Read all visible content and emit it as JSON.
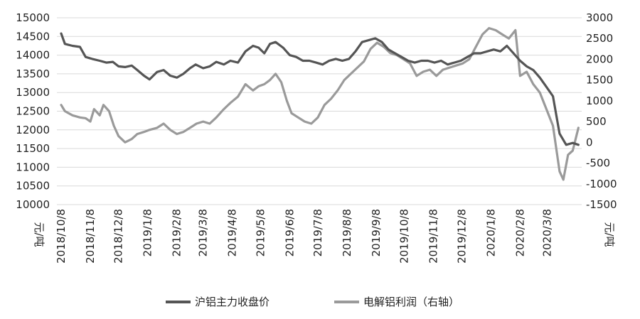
{
  "chart_data": {
    "type": "line",
    "grid": true,
    "legend_position": "bottom",
    "left_axis": {
      "unit": "元/吨",
      "min": 10000,
      "max": 15000,
      "step": 500
    },
    "right_axis": {
      "unit": "元/吨",
      "min": -1500,
      "max": 3000,
      "step": 500
    },
    "x_tick_labels": [
      "2018/10/8",
      "2018/11/8",
      "2018/12/8",
      "2019/1/8",
      "2019/2/8",
      "2019/3/8",
      "2019/4/8",
      "2019/5/8",
      "2019/6/8",
      "2019/7/8",
      "2019/8/8",
      "2019/9/8",
      "2019/10/8",
      "2019/11/8",
      "2019/12/8",
      "2020/1/8",
      "2020/2/8",
      "2020/3/8"
    ],
    "series": [
      {
        "name": "沪铝主力收盘价",
        "axis": "left",
        "color": "#555555",
        "points": [
          [
            "2018-10-08",
            14580
          ],
          [
            "2018-10-12",
            14300
          ],
          [
            "2018-10-20",
            14250
          ],
          [
            "2018-10-28",
            14220
          ],
          [
            "2018-11-03",
            13950
          ],
          [
            "2018-11-10",
            13900
          ],
          [
            "2018-11-18",
            13850
          ],
          [
            "2018-11-25",
            13800
          ],
          [
            "2018-12-02",
            13820
          ],
          [
            "2018-12-08",
            13700
          ],
          [
            "2018-12-15",
            13680
          ],
          [
            "2018-12-22",
            13720
          ],
          [
            "2018-12-28",
            13600
          ],
          [
            "2019-01-04",
            13450
          ],
          [
            "2019-01-10",
            13350
          ],
          [
            "2019-01-18",
            13550
          ],
          [
            "2019-01-25",
            13600
          ],
          [
            "2019-02-01",
            13450
          ],
          [
            "2019-02-08",
            13400
          ],
          [
            "2019-02-15",
            13500
          ],
          [
            "2019-02-22",
            13650
          ],
          [
            "2019-02-28",
            13750
          ],
          [
            "2019-03-08",
            13650
          ],
          [
            "2019-03-15",
            13700
          ],
          [
            "2019-03-22",
            13820
          ],
          [
            "2019-03-30",
            13750
          ],
          [
            "2019-04-06",
            13850
          ],
          [
            "2019-04-14",
            13800
          ],
          [
            "2019-04-22",
            14100
          ],
          [
            "2019-04-30",
            14250
          ],
          [
            "2019-05-06",
            14200
          ],
          [
            "2019-05-12",
            14050
          ],
          [
            "2019-05-18",
            14300
          ],
          [
            "2019-05-24",
            14350
          ],
          [
            "2019-06-01",
            14200
          ],
          [
            "2019-06-08",
            14000
          ],
          [
            "2019-06-15",
            13950
          ],
          [
            "2019-06-22",
            13850
          ],
          [
            "2019-06-29",
            13850
          ],
          [
            "2019-07-06",
            13800
          ],
          [
            "2019-07-13",
            13750
          ],
          [
            "2019-07-20",
            13850
          ],
          [
            "2019-07-27",
            13900
          ],
          [
            "2019-08-03",
            13850
          ],
          [
            "2019-08-10",
            13900
          ],
          [
            "2019-08-17",
            14100
          ],
          [
            "2019-08-24",
            14350
          ],
          [
            "2019-08-31",
            14400
          ],
          [
            "2019-09-07",
            14450
          ],
          [
            "2019-09-14",
            14350
          ],
          [
            "2019-09-21",
            14150
          ],
          [
            "2019-09-28",
            14050
          ],
          [
            "2019-10-05",
            13950
          ],
          [
            "2019-10-12",
            13850
          ],
          [
            "2019-10-19",
            13800
          ],
          [
            "2019-10-26",
            13850
          ],
          [
            "2019-11-02",
            13850
          ],
          [
            "2019-11-09",
            13800
          ],
          [
            "2019-11-16",
            13850
          ],
          [
            "2019-11-23",
            13750
          ],
          [
            "2019-11-30",
            13800
          ],
          [
            "2019-12-07",
            13850
          ],
          [
            "2019-12-14",
            13950
          ],
          [
            "2019-12-21",
            14050
          ],
          [
            "2019-12-28",
            14050
          ],
          [
            "2020-01-04",
            14100
          ],
          [
            "2020-01-11",
            14150
          ],
          [
            "2020-01-18",
            14100
          ],
          [
            "2020-01-25",
            14250
          ],
          [
            "2020-02-01",
            14050
          ],
          [
            "2020-02-08",
            13850
          ],
          [
            "2020-02-15",
            13700
          ],
          [
            "2020-02-22",
            13600
          ],
          [
            "2020-02-29",
            13400
          ],
          [
            "2020-03-07",
            13150
          ],
          [
            "2020-03-14",
            12900
          ],
          [
            "2020-03-21",
            11900
          ],
          [
            "2020-03-28",
            11600
          ],
          [
            "2020-04-04",
            11650
          ],
          [
            "2020-04-10",
            11600
          ]
        ]
      },
      {
        "name": "电解铝利润（右轴）",
        "axis": "right",
        "color": "#9a9a9a",
        "points": [
          [
            "2018-10-08",
            900
          ],
          [
            "2018-10-12",
            750
          ],
          [
            "2018-10-20",
            650
          ],
          [
            "2018-10-28",
            600
          ],
          [
            "2018-11-03",
            580
          ],
          [
            "2018-11-08",
            500
          ],
          [
            "2018-11-12",
            800
          ],
          [
            "2018-11-18",
            650
          ],
          [
            "2018-11-22",
            900
          ],
          [
            "2018-11-28",
            750
          ],
          [
            "2018-12-03",
            400
          ],
          [
            "2018-12-08",
            150
          ],
          [
            "2018-12-15",
            0
          ],
          [
            "2018-12-22",
            80
          ],
          [
            "2018-12-28",
            200
          ],
          [
            "2019-01-04",
            250
          ],
          [
            "2019-01-10",
            300
          ],
          [
            "2019-01-18",
            350
          ],
          [
            "2019-01-25",
            450
          ],
          [
            "2019-02-01",
            300
          ],
          [
            "2019-02-08",
            200
          ],
          [
            "2019-02-15",
            250
          ],
          [
            "2019-02-22",
            350
          ],
          [
            "2019-03-01",
            450
          ],
          [
            "2019-03-08",
            500
          ],
          [
            "2019-03-15",
            450
          ],
          [
            "2019-03-22",
            600
          ],
          [
            "2019-03-30",
            800
          ],
          [
            "2019-04-06",
            950
          ],
          [
            "2019-04-14",
            1100
          ],
          [
            "2019-04-22",
            1400
          ],
          [
            "2019-04-30",
            1250
          ],
          [
            "2019-05-06",
            1350
          ],
          [
            "2019-05-12",
            1400
          ],
          [
            "2019-05-18",
            1500
          ],
          [
            "2019-05-24",
            1650
          ],
          [
            "2019-05-30",
            1450
          ],
          [
            "2019-06-05",
            1000
          ],
          [
            "2019-06-10",
            700
          ],
          [
            "2019-06-17",
            600
          ],
          [
            "2019-06-24",
            500
          ],
          [
            "2019-07-01",
            450
          ],
          [
            "2019-07-08",
            600
          ],
          [
            "2019-07-15",
            900
          ],
          [
            "2019-07-22",
            1050
          ],
          [
            "2019-07-29",
            1250
          ],
          [
            "2019-08-05",
            1500
          ],
          [
            "2019-08-12",
            1650
          ],
          [
            "2019-08-19",
            1800
          ],
          [
            "2019-08-26",
            1950
          ],
          [
            "2019-09-02",
            2250
          ],
          [
            "2019-09-09",
            2400
          ],
          [
            "2019-09-16",
            2300
          ],
          [
            "2019-09-23",
            2150
          ],
          [
            "2019-09-30",
            2100
          ],
          [
            "2019-10-07",
            2000
          ],
          [
            "2019-10-14",
            1900
          ],
          [
            "2019-10-21",
            1600
          ],
          [
            "2019-10-28",
            1700
          ],
          [
            "2019-11-04",
            1750
          ],
          [
            "2019-11-11",
            1600
          ],
          [
            "2019-11-18",
            1750
          ],
          [
            "2019-11-25",
            1800
          ],
          [
            "2019-12-02",
            1850
          ],
          [
            "2019-12-09",
            1900
          ],
          [
            "2019-12-16",
            2000
          ],
          [
            "2019-12-23",
            2300
          ],
          [
            "2019-12-30",
            2600
          ],
          [
            "2020-01-06",
            2750
          ],
          [
            "2020-01-13",
            2700
          ],
          [
            "2020-01-20",
            2600
          ],
          [
            "2020-01-27",
            2500
          ],
          [
            "2020-02-03",
            2700
          ],
          [
            "2020-02-08",
            1600
          ],
          [
            "2020-02-15",
            1700
          ],
          [
            "2020-02-22",
            1400
          ],
          [
            "2020-02-29",
            1200
          ],
          [
            "2020-03-07",
            800
          ],
          [
            "2020-03-14",
            400
          ],
          [
            "2020-03-21",
            -700
          ],
          [
            "2020-03-25",
            -900
          ],
          [
            "2020-03-30",
            -300
          ],
          [
            "2020-04-04",
            -200
          ],
          [
            "2020-04-10",
            350
          ]
        ]
      }
    ]
  }
}
